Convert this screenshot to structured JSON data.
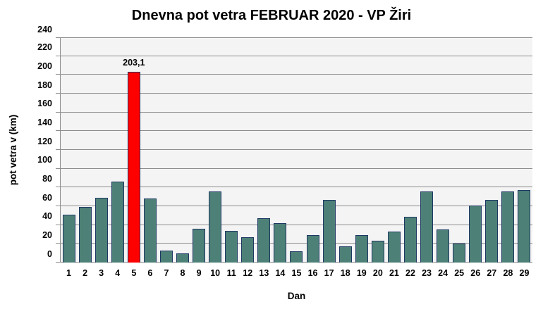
{
  "chart": {
    "title": "Dnevna pot vetra FEBRUAR 2020 - VP Žiri",
    "xlabel": "Dan",
    "ylabel": "pot vetra  v (km)"
  },
  "chart_data": {
    "type": "bar",
    "title": "Dnevna pot vetra FEBRUAR 2020 - VP Žiri",
    "xlabel": "Dan",
    "ylabel": "pot vetra  v (km)",
    "ylim": [
      0,
      240
    ],
    "ytick_step": 20,
    "grid": "horizontal",
    "legend": "none",
    "categories": [
      "1",
      "2",
      "3",
      "4",
      "5",
      "6",
      "7",
      "8",
      "9",
      "10",
      "11",
      "12",
      "13",
      "14",
      "15",
      "16",
      "17",
      "18",
      "19",
      "20",
      "21",
      "22",
      "23",
      "24",
      "25",
      "26",
      "27",
      "28",
      "29"
    ],
    "values": [
      51,
      59,
      69,
      86,
      203.1,
      68,
      13,
      10,
      36,
      76,
      34,
      27,
      47,
      42,
      12,
      29,
      67,
      17,
      29,
      23,
      33,
      49,
      76,
      35,
      20,
      61,
      67,
      76,
      77
    ],
    "highlight_index": 4,
    "annotations": [
      {
        "category": "5",
        "text": "203,1"
      }
    ],
    "colors": {
      "bar_fill": "#4D8077",
      "bar_border": "#1F3864",
      "highlight_fill": "#FF0000",
      "plot_bg": "#F4F4F4",
      "gridline": "#8C8C8C",
      "text": "#000000",
      "background": "#FFFFFF"
    }
  }
}
